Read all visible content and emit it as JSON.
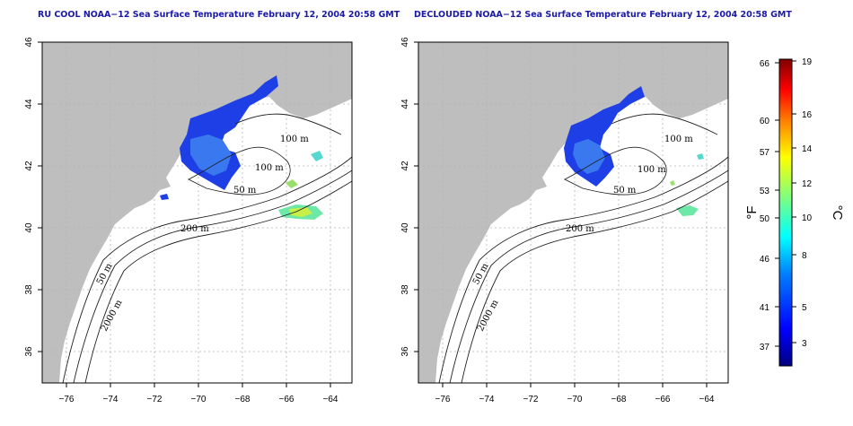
{
  "panels": [
    {
      "title": "RU COOL NOAA−12 Sea Surface Temperature February 12, 2004 20:58 GMT",
      "x_ticks": [
        "−76",
        "−74",
        "−72",
        "−70",
        "−68",
        "−66",
        "−64"
      ],
      "y_ticks": [
        "36",
        "38",
        "40",
        "42",
        "44",
        "46"
      ],
      "contour_labels": [
        "100 m",
        "100 m",
        "50 m",
        "200 m",
        "50 m",
        "2000 m"
      ]
    },
    {
      "title": "DECLOUDED NOAA−12 Sea Surface Temperature February 12, 2004 20:58 GMT",
      "x_ticks": [
        "−76",
        "−74",
        "−72",
        "−70",
        "−68",
        "−66",
        "−64"
      ],
      "y_ticks": [
        "36",
        "38",
        "40",
        "42",
        "44",
        "46"
      ],
      "contour_labels": [
        "100 m",
        "100 m",
        "50 m",
        "200 m",
        "50 m",
        "2000 m"
      ]
    }
  ],
  "colorbar": {
    "f_ticks": [
      "66",
      "60",
      "57",
      "53",
      "50",
      "46",
      "41",
      "37"
    ],
    "c_ticks": [
      "19",
      "16",
      "14",
      "12",
      "10",
      "8",
      "5",
      "3"
    ],
    "f_label": "°F",
    "c_label": "°C",
    "colors": [
      "#00007f",
      "#0000ff",
      "#007fff",
      "#00ffff",
      "#7fff7f",
      "#ffff00",
      "#ff7f00",
      "#ff0000",
      "#7f0000"
    ]
  },
  "map_colors": {
    "land": "#bebebe",
    "ocean": "#ffffff",
    "grid": "#b4b4b4"
  }
}
